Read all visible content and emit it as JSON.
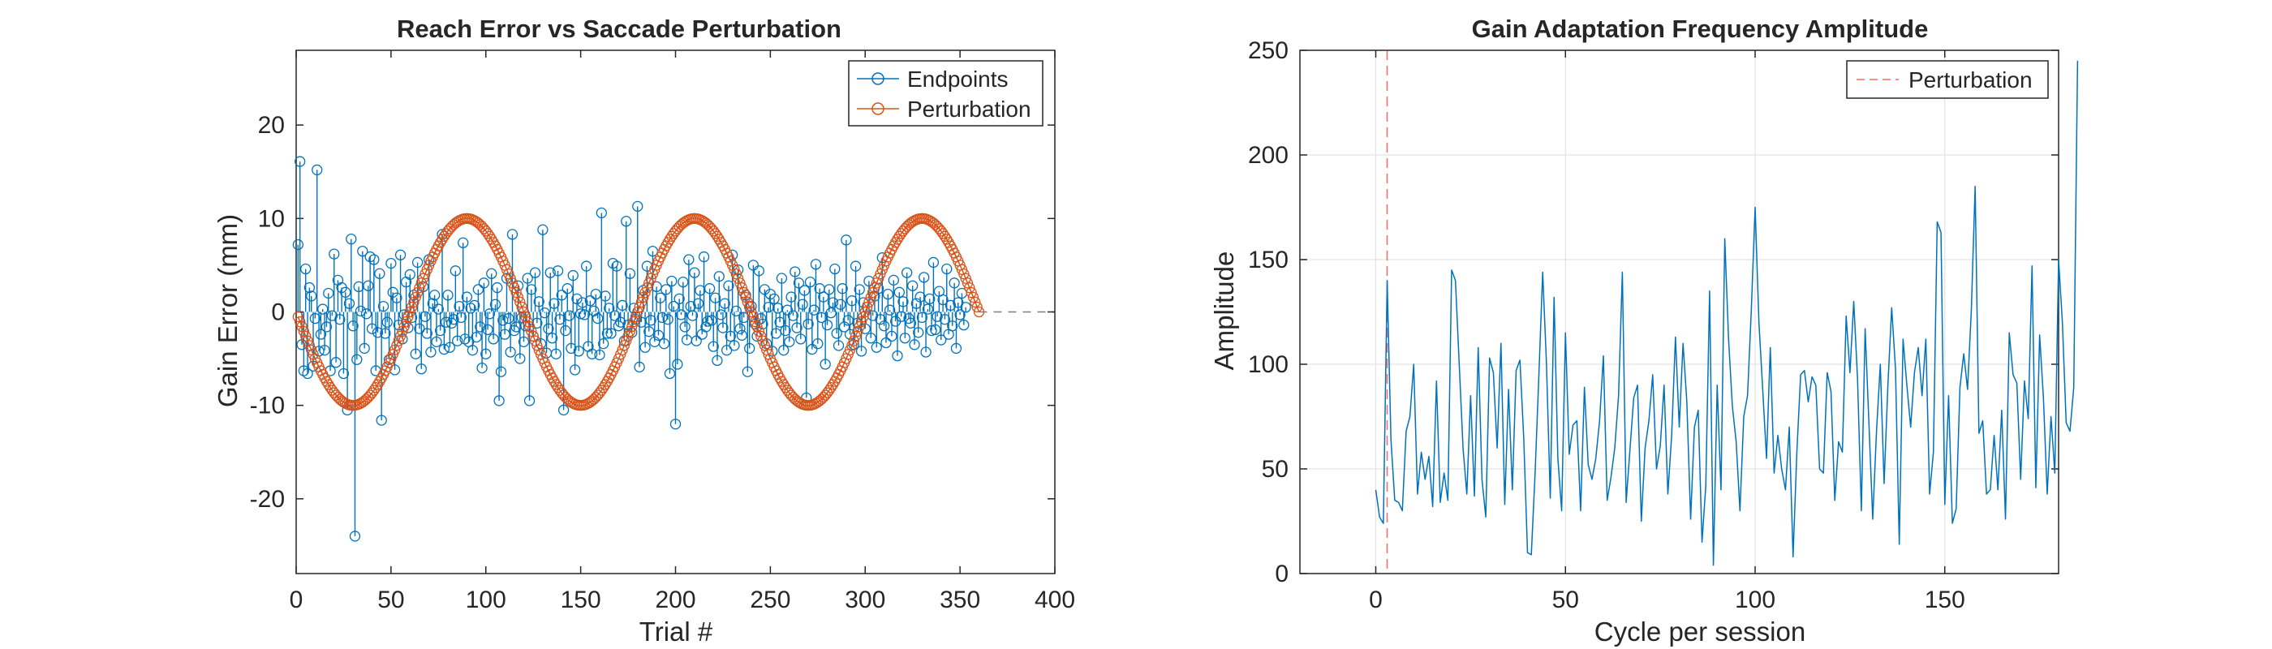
{
  "chart_data": [
    {
      "type": "stem",
      "title": "Reach Error vs Saccade Perturbation",
      "xlabel": "Trial #",
      "ylabel": "Gain Error (mm)",
      "xlim": [
        0,
        400
      ],
      "ylim": [
        -28,
        28
      ],
      "xticks": [
        0,
        50,
        100,
        150,
        200,
        250,
        300,
        350,
        400
      ],
      "yticks": [
        -20,
        -10,
        0,
        10,
        20
      ],
      "grid": false,
      "legend_position": "top-right",
      "baseline_dashed": true,
      "colors": {
        "endpoints": "#0072BD",
        "perturbation": "#D95319"
      },
      "series": [
        {
          "name": "Endpoints",
          "marker": "circle",
          "n": 360,
          "values": [
            7.2,
            16.1,
            -3.5,
            -6.3,
            4.6,
            -6.6,
            2.6,
            1.7,
            -5.8,
            -0.7,
            15.2,
            -4.2,
            -2.4,
            0.3,
            -4.1,
            -1.6,
            2.0,
            -6.3,
            -0.4,
            6.2,
            -5.4,
            3.4,
            -0.8,
            2.6,
            -6.6,
            2.1,
            -10.5,
            0.9,
            7.8,
            -1.5,
            -24.0,
            -5.1,
            2.7,
            0.1,
            6.5,
            -3.9,
            -0.2,
            2.8,
            5.9,
            -1.8,
            5.6,
            -6.3,
            -2.2,
            4.1,
            -11.6,
            0.6,
            -2.3,
            -1.1,
            -5.1,
            5.2,
            2.1,
            -6.2,
            1.5,
            -1.4,
            6.1,
            -2.9,
            -0.3,
            3.2,
            -1.7,
            4.0,
            -0.6,
            1.8,
            -4.5,
            5.3,
            -1.8,
            -6.1,
            2.7,
            -0.5,
            -2.3,
            5.6,
            -4.3,
            0.9,
            1.8,
            -3.2,
            0.3,
            -2.0,
            8.3,
            -4.0,
            -1.1,
            1.8,
            -3.8,
            -1.2,
            -0.8,
            4.4,
            -3.1,
            0.6,
            -0.6,
            7.4,
            -2.9,
            1.6,
            -3.2,
            0.4,
            -4.1,
            0.7,
            -2.7,
            2.4,
            -1.6,
            -6.0,
            3.1,
            -4.5,
            -1.9,
            -0.2,
            4.1,
            -2.9,
            0.8,
            2.6,
            -9.5,
            -6.4,
            -0.9,
            -2.4,
            3.6,
            -0.7,
            -4.3,
            8.3,
            -2.0,
            -1.6,
            2.8,
            -5.0,
            -0.6,
            -3.2,
            -1.5,
            3.6,
            -9.5,
            2.4,
            -2.6,
            4.2,
            -1.2,
            1.1,
            -3.4,
            8.8,
            -0.1,
            -4.4,
            -1.8,
            4.2,
            -2.8,
            0.9,
            -4.5,
            4.4,
            -0.8,
            1.8,
            -10.5,
            -2.0,
            2.5,
            -0.4,
            -3.9,
            3.9,
            -6.2,
            1.4,
            -4.2,
            -0.2,
            1.0,
            -0.3,
            4.9,
            -3.7,
            1.2,
            -4.5,
            0.1,
            1.9,
            -0.7,
            -4.6,
            10.6,
            -3.4,
            1.7,
            -2.3,
            0.4,
            -2.3,
            5.2,
            -0.4,
            4.9,
            -1.5,
            -1.1,
            0.7,
            -3.1,
            9.7,
            -1.4,
            4.1,
            -2.2,
            0.4,
            -0.8,
            11.3,
            -5.9,
            -1.1,
            2.3,
            -3.8,
            4.9,
            -2.1,
            -0.9,
            6.5,
            -3.2,
            2.7,
            -2.5,
            1.5,
            -0.6,
            -3.4,
            2.4,
            -0.8,
            -6.6,
            3.3,
            0.6,
            -12.0,
            -5.6,
            1.4,
            -0.3,
            3.2,
            -1.6,
            -3.0,
            5.6,
            0.6,
            -0.4,
            4.2,
            -3.1,
            0.9,
            2.3,
            -2.4,
            5.9,
            -1.6,
            -1.0,
            2.5,
            -0.9,
            -3.7,
            1.5,
            -5.2,
            3.8,
            -0.3,
            -1.7,
            0.9,
            -4.1,
            2.8,
            -2.6,
            6.1,
            -3.6,
            0.1,
            4.5,
            -1.8,
            -2.5,
            -0.6,
            1.8,
            -6.4,
            -3.9,
            0.6,
            5.0,
            -1.3,
            -2.6,
            4.4,
            -0.7,
            -1.3,
            2.4,
            -3.4,
            0.5,
            1.9,
            -4.2,
            1.4,
            -2.3,
            0.4,
            -1.1,
            3.6,
            -4.1,
            -2.0,
            0.2,
            -3.2,
            1.6,
            -0.4,
            4.3,
            -1.7,
            3.1,
            -2.9,
            0.8,
            2.3,
            -9.2,
            -1.3,
            3.2,
            -4.0,
            0.2,
            5.1,
            -3.4,
            2.5,
            -0.6,
            1.6,
            -5.6,
            -1.4,
            2.4,
            -0.1,
            1.0,
            4.6,
            -2.3,
            -3.6,
            0.8,
            2.5,
            -1.6,
            7.7,
            -0.9,
            -2.4,
            1.2,
            -3.5,
            4.9,
            -1.2,
            2.4,
            -4.2,
            1.0,
            -1.8,
            0.5,
            3.3,
            -2.8,
            -0.4,
            1.7,
            -3.8,
            2.5,
            -0.8,
            5.8,
            -1.5,
            -3.3,
            1.9,
            0.2,
            -2.6,
            3.4,
            -1.0,
            -4.7,
            2.1,
            -0.5,
            1.1,
            -2.8,
            4.2,
            -0.7,
            -1.2,
            2.8,
            -3.5,
            0.9,
            -2.2,
            1.6,
            -0.6,
            3.7,
            -4.3,
            0.3,
            1.4,
            -2.0,
            5.3,
            -1.9,
            -0.5,
            2.2,
            -3.0,
            1.3,
            -0.8,
            4.6,
            -2.4,
            0.7,
            -1.5,
            3.1,
            -3.9,
            1.0,
            -0.3,
            2.0,
            -1.4,
            0.5
          ]
        },
        {
          "name": "Perturbation",
          "marker": "circle",
          "n": 360,
          "function": "-10*sin(2*pi*t/120)"
        }
      ]
    },
    {
      "type": "line",
      "title": "Gain Adaptation Frequency Amplitude",
      "xlabel": "Cycle per session",
      "ylabel": "Amplitude",
      "xlim": [
        -20,
        180
      ],
      "ylim": [
        0,
        250
      ],
      "xticks": [
        0,
        50,
        100,
        150
      ],
      "yticks": [
        0,
        50,
        100,
        150,
        200,
        250
      ],
      "grid": true,
      "legend_position": "top-right",
      "colors": {
        "line": "#0072BD",
        "perturbation": "#FF0000"
      },
      "series": [
        {
          "name": "Perturbation",
          "style": "dashed-vertical",
          "x": 3
        },
        {
          "name": "",
          "x_start": 0,
          "values": [
            40,
            27,
            24,
            140,
            64,
            35,
            34,
            30,
            68,
            75,
            100,
            38,
            58,
            45,
            56,
            32,
            92,
            34,
            48,
            35,
            145,
            140,
            100,
            60,
            38,
            85,
            37,
            108,
            45,
            27,
            103,
            96,
            60,
            110,
            33,
            88,
            40,
            97,
            102,
            65,
            10,
            9,
            48,
            95,
            144,
            100,
            36,
            132,
            55,
            30,
            115,
            57,
            71,
            73,
            30,
            89,
            52,
            45,
            55,
            73,
            104,
            35,
            46,
            60,
            85,
            144,
            34,
            59,
            84,
            90,
            25,
            60,
            73,
            95,
            50,
            61,
            90,
            38,
            66,
            113,
            70,
            110,
            82,
            26,
            70,
            78,
            15,
            42,
            135,
            4,
            90,
            40,
            160,
            112,
            80,
            63,
            30,
            75,
            85,
            126,
            175,
            120,
            88,
            55,
            108,
            48,
            66,
            50,
            40,
            70,
            8,
            58,
            95,
            97,
            82,
            94,
            90,
            50,
            48,
            96,
            87,
            35,
            63,
            58,
            123,
            96,
            130,
            93,
            30,
            117,
            72,
            26,
            68,
            100,
            43,
            90,
            127,
            98,
            14,
            112,
            90,
            70,
            96,
            108,
            85,
            112,
            38,
            58,
            168,
            163,
            33,
            85,
            24,
            31,
            89,
            105,
            88,
            126,
            185,
            67,
            73,
            38,
            40,
            66,
            40,
            78,
            26,
            115,
            95,
            91,
            45,
            92,
            74,
            147,
            41,
            114,
            84,
            38,
            75,
            48,
            150,
            120,
            72,
            68,
            89,
            245
          ]
        }
      ]
    }
  ]
}
